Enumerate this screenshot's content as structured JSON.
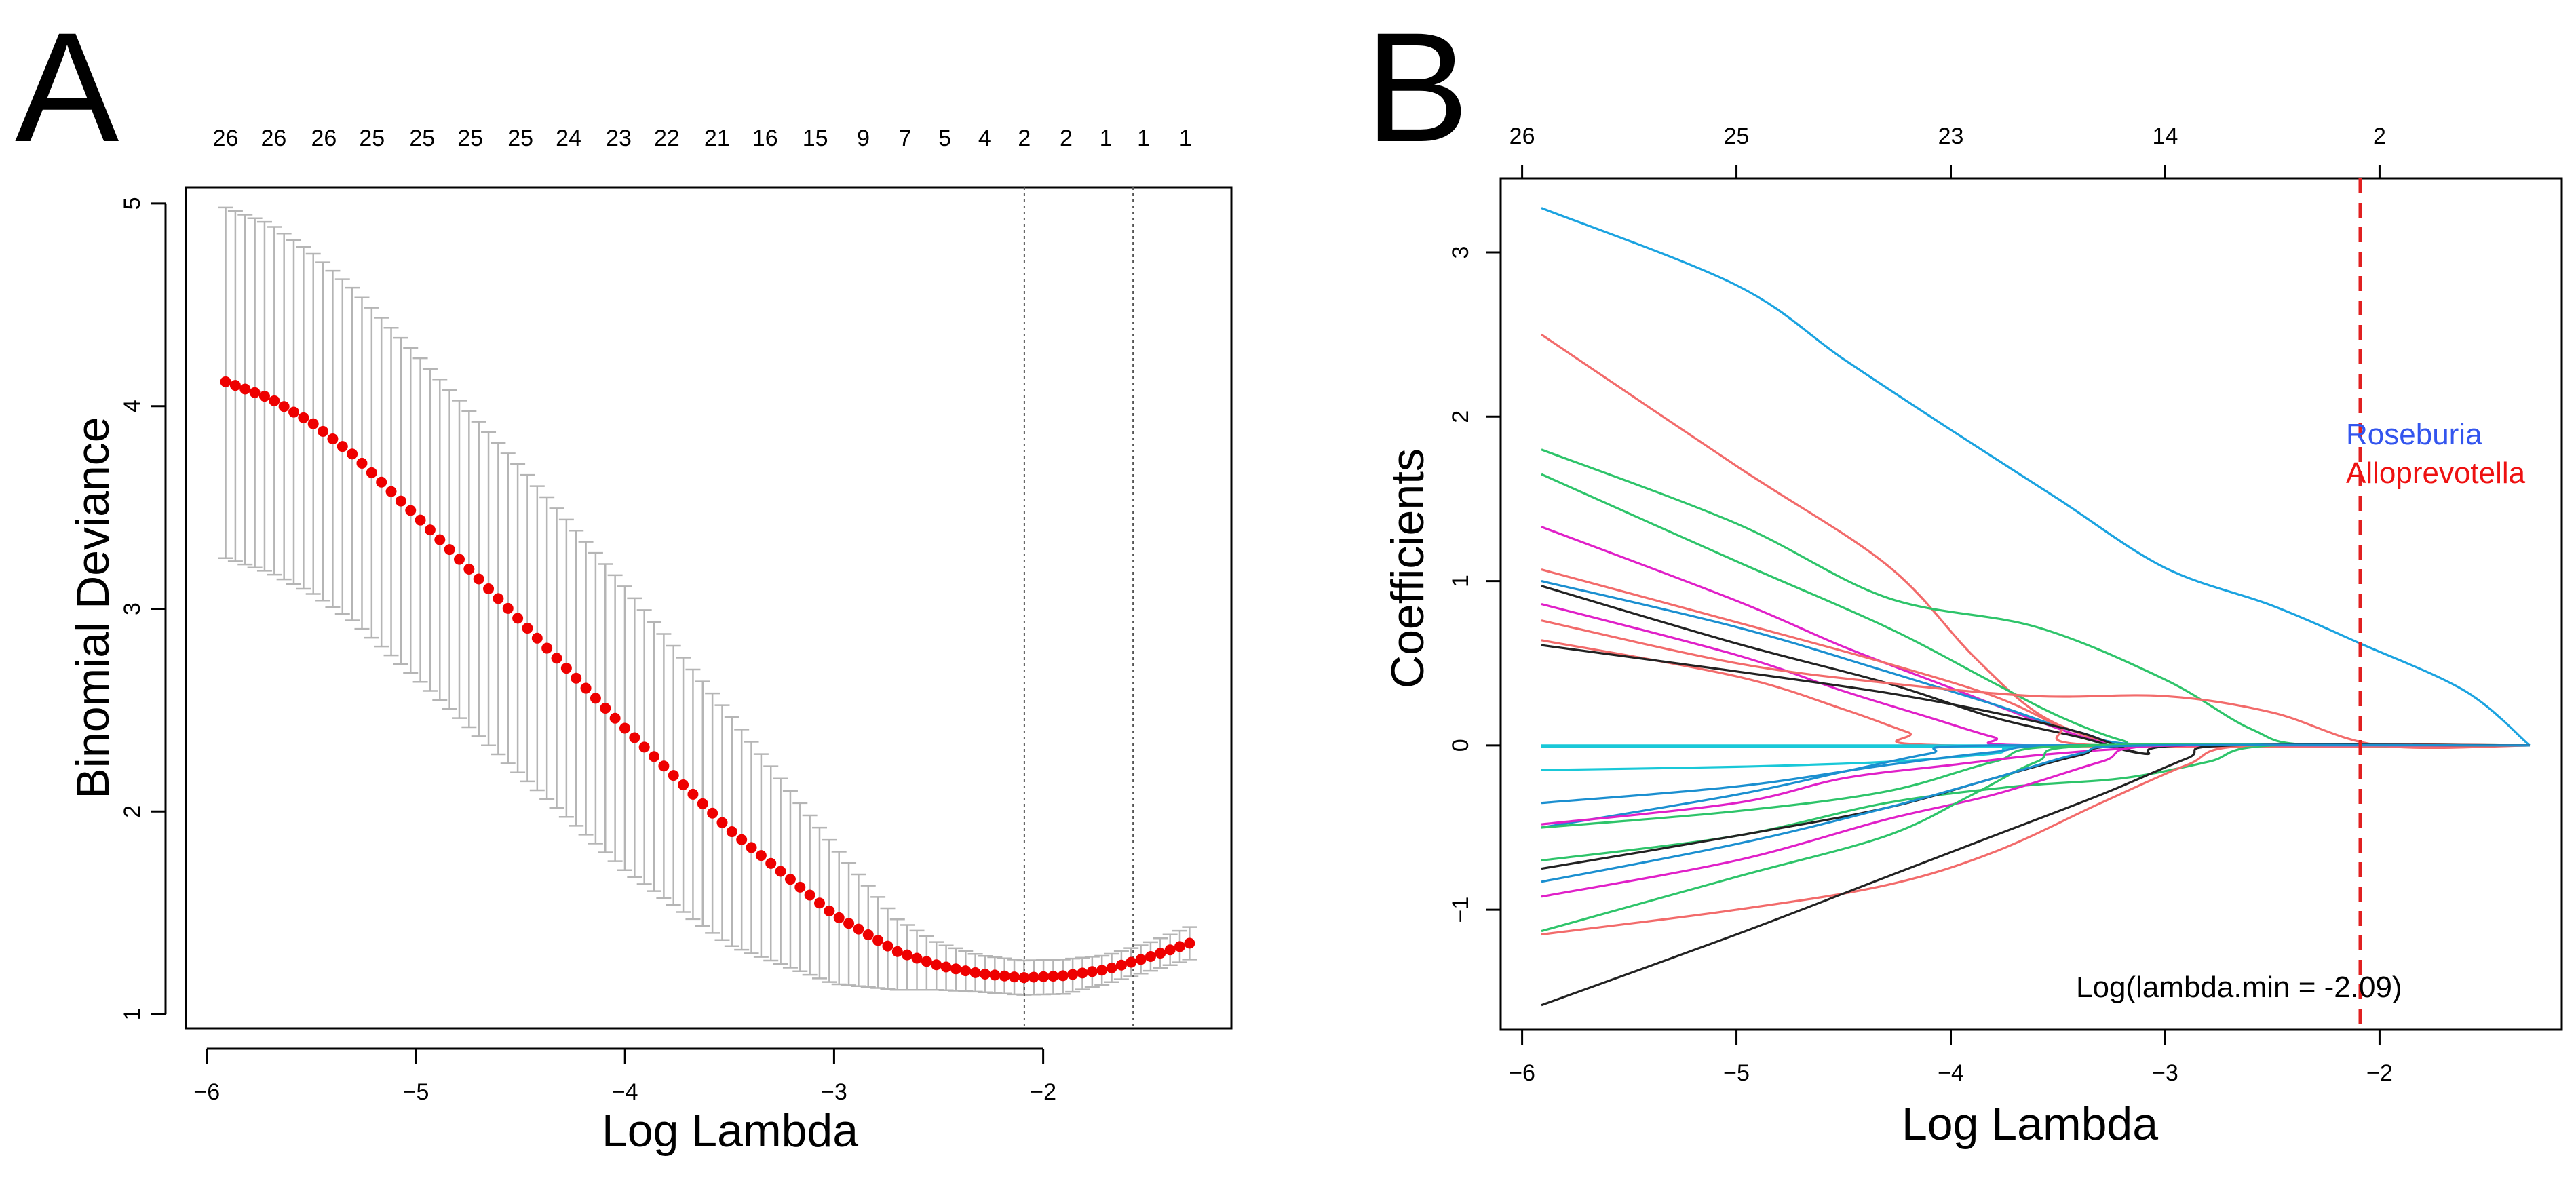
{
  "chart_data": [
    {
      "panel": "A",
      "type": "line",
      "plot_kind": "cross-validation deviance with error bars",
      "xlabel": "Log Lambda",
      "ylabel": "Binomial Deviance",
      "xlim": [
        -6.1,
        -1.1
      ],
      "ylim": [
        0.93,
        5.08
      ],
      "xticks": [
        -6,
        -5,
        -4,
        -3,
        -2
      ],
      "xtick_labels": [
        "−6",
        "−5",
        "−4",
        "−3",
        "−2"
      ],
      "yticks": [
        1,
        2,
        3,
        4,
        5
      ],
      "ytick_labels": [
        "1",
        "2",
        "3",
        "4",
        "5"
      ],
      "top_labels": [
        "26",
        "26",
        "26",
        "25",
        "25",
        "25",
        "25",
        "24",
        "23",
        "22",
        "21",
        "16",
        "15",
        "9",
        "7",
        "5",
        "4",
        "2",
        "2",
        "1",
        "1",
        "1"
      ],
      "top_label_x": [
        -5.91,
        -5.68,
        -5.44,
        -5.21,
        -4.97,
        -4.74,
        -4.5,
        -4.27,
        -4.03,
        -3.8,
        -3.56,
        -3.33,
        -3.09,
        -2.86,
        -2.66,
        -2.47,
        -2.28,
        -2.09,
        -1.89,
        -1.7,
        -1.52,
        -1.32
      ],
      "lambda_min": -2.09,
      "lambda_1se": -1.57,
      "curve": {
        "x_start": -5.91,
        "x_end": -1.3,
        "n_points": 100,
        "color": "#ee0000",
        "knots_x": [
          -5.91,
          -5.7,
          -5.5,
          -5.3,
          -5.0,
          -4.5,
          -4.0,
          -3.5,
          -3.0,
          -2.7,
          -2.5,
          -2.3,
          -2.1,
          -1.9,
          -1.7,
          -1.5,
          -1.3
        ],
        "knots_y": [
          4.12,
          4.04,
          3.92,
          3.76,
          3.46,
          2.94,
          2.41,
          1.91,
          1.49,
          1.31,
          1.24,
          1.2,
          1.18,
          1.19,
          1.22,
          1.28,
          1.35
        ],
        "upper_knots_y": [
          4.98,
          4.9,
          4.76,
          4.58,
          4.26,
          3.7,
          3.11,
          2.48,
          1.83,
          1.47,
          1.35,
          1.29,
          1.265,
          1.27,
          1.29,
          1.35,
          1.43
        ],
        "lower_knots_y": [
          3.25,
          3.18,
          3.08,
          2.94,
          2.66,
          2.18,
          1.71,
          1.34,
          1.15,
          1.12,
          1.12,
          1.11,
          1.095,
          1.1,
          1.15,
          1.21,
          1.27
        ]
      }
    },
    {
      "panel": "B",
      "type": "line",
      "plot_kind": "lasso coefficient paths",
      "xlabel": "Log Lambda",
      "ylabel": "Coefficients",
      "xlim": [
        -6.1,
        -1.15
      ],
      "ylim": [
        -1.73,
        3.45
      ],
      "xticks": [
        -6,
        -5,
        -4,
        -3,
        -2
      ],
      "xtick_labels": [
        "−6",
        "−5",
        "−4",
        "−3",
        "−2"
      ],
      "yticks": [
        -1,
        0,
        1,
        2,
        3
      ],
      "ytick_labels": [
        "−1",
        "0",
        "1",
        "2",
        "3"
      ],
      "top_labels": [
        "26",
        "25",
        "23",
        "14",
        "2"
      ],
      "top_label_x": [
        -6,
        -5,
        -4,
        -3,
        -2
      ],
      "lambda_min_line": -2.09,
      "annotation": "Log(lambda.min = -2.09)",
      "legend": [
        {
          "label": "Roseburia",
          "color": "#3355ee"
        },
        {
          "label": "Alloprevotella",
          "color": "#ee1111"
        }
      ],
      "series": [
        {
          "color": "#1ba3e0",
          "x": [
            -5.91,
            -5.0,
            -4.5,
            -4.0,
            -3.5,
            -3.0,
            -2.5,
            -2.09,
            -1.6,
            -1.3
          ],
          "y": [
            3.27,
            2.8,
            2.35,
            1.92,
            1.5,
            1.08,
            0.85,
            0.62,
            0.33,
            0.0
          ]
        },
        {
          "color": "#f26b6b",
          "x": [
            -5.91,
            -5.0,
            -4.3,
            -3.9,
            -3.6,
            -3.3,
            -3.1
          ],
          "y": [
            2.5,
            1.7,
            1.1,
            0.55,
            0.2,
            0.03,
            0.0
          ]
        },
        {
          "color": "#2ec46a",
          "x": [
            -5.91,
            -5.0,
            -4.3,
            -3.6,
            -3.0,
            -2.6,
            -2.3
          ],
          "y": [
            1.8,
            1.35,
            0.9,
            0.72,
            0.4,
            0.1,
            0.0
          ]
        },
        {
          "color": "#2ec46a",
          "x": [
            -5.91,
            -5.0,
            -4.3,
            -3.8,
            -3.5,
            -3.2,
            -3.0
          ],
          "y": [
            1.65,
            1.12,
            0.72,
            0.38,
            0.18,
            0.03,
            0.0
          ]
        },
        {
          "color": "#e020c8",
          "x": [
            -5.91,
            -5.0,
            -4.5,
            -4.0,
            -3.6,
            -3.3,
            -3.1
          ],
          "y": [
            1.33,
            0.88,
            0.6,
            0.35,
            0.15,
            0.02,
            0.0
          ]
        },
        {
          "color": "#1b8fd0",
          "x": [
            -5.91,
            -5.0,
            -4.3,
            -3.8,
            -3.4,
            -3.0
          ],
          "y": [
            1.0,
            0.72,
            0.45,
            0.25,
            0.08,
            0.0
          ]
        },
        {
          "color": "#222222",
          "x": [
            -5.91,
            -5.0,
            -4.3,
            -3.8,
            -3.4,
            -3.1,
            -2.9
          ],
          "y": [
            0.97,
            0.62,
            0.38,
            0.17,
            0.05,
            -0.05,
            0.0
          ]
        },
        {
          "color": "#f26b6b",
          "x": [
            -5.91,
            -5.0,
            -4.3,
            -3.8,
            -3.5,
            -3.3
          ],
          "y": [
            1.07,
            0.75,
            0.5,
            0.3,
            0.12,
            0.0
          ]
        },
        {
          "color": "#e020c8",
          "x": [
            -5.91,
            -5.0,
            -4.5,
            -4.1,
            -3.8,
            -3.6
          ],
          "y": [
            0.86,
            0.55,
            0.33,
            0.17,
            0.05,
            0.0
          ]
        },
        {
          "color": "#f26b6b",
          "x": [
            -5.91,
            -5.0,
            -4.3,
            -3.6,
            -3.0,
            -2.5,
            -2.0
          ],
          "y": [
            0.76,
            0.5,
            0.38,
            0.3,
            0.3,
            0.2,
            0.0
          ]
        },
        {
          "color": "#f26b6b",
          "x": [
            -5.91,
            -5.0,
            -4.5,
            -4.2,
            -4.0
          ],
          "y": [
            0.64,
            0.42,
            0.22,
            0.08,
            0.0
          ]
        },
        {
          "color": "#222222",
          "x": [
            -5.91,
            -5.0,
            -4.3,
            -3.8,
            -3.4,
            -3.1,
            -2.9
          ],
          "y": [
            0.61,
            0.45,
            0.32,
            0.2,
            0.08,
            -0.05,
            0.0
          ]
        },
        {
          "color": "#19c8d8",
          "x": [
            -5.91,
            -4.5,
            -3.5
          ],
          "y": [
            0.0,
            0.0,
            0.0
          ]
        },
        {
          "color": "#19c8d8",
          "x": [
            -5.91,
            -5.0,
            -4.3,
            -3.8,
            -3.5
          ],
          "y": [
            -0.01,
            -0.01,
            -0.01,
            -0.01,
            0.0
          ]
        },
        {
          "color": "#19c8d8",
          "x": [
            -5.91,
            -5.0,
            -4.3,
            -3.8,
            -3.5
          ],
          "y": [
            -0.15,
            -0.13,
            -0.1,
            -0.05,
            0.0
          ]
        },
        {
          "color": "#1b8fd0",
          "x": [
            -5.91,
            -5.0,
            -4.3,
            -3.8,
            -3.4
          ],
          "y": [
            -0.35,
            -0.25,
            -0.12,
            -0.04,
            0.0
          ]
        },
        {
          "color": "#1b8fd0",
          "x": [
            -5.91,
            -5.0,
            -4.5,
            -4.1,
            -3.8
          ],
          "y": [
            -0.5,
            -0.3,
            -0.16,
            -0.05,
            0.0
          ]
        },
        {
          "color": "#2ec46a",
          "x": [
            -5.91,
            -5.0,
            -4.3,
            -3.8,
            -3.4
          ],
          "y": [
            -0.5,
            -0.4,
            -0.28,
            -0.1,
            0.0
          ]
        },
        {
          "color": "#e020c8",
          "x": [
            -5.91,
            -5.0,
            -4.5,
            -4.0,
            -3.6,
            -3.2,
            -2.9
          ],
          "y": [
            -0.48,
            -0.35,
            -0.2,
            -0.12,
            -0.06,
            -0.02,
            0.0
          ]
        },
        {
          "color": "#2ec46a",
          "x": [
            -5.91,
            -5.0,
            -4.3,
            -3.7,
            -3.2,
            -2.8,
            -2.5
          ],
          "y": [
            -0.7,
            -0.55,
            -0.35,
            -0.25,
            -0.2,
            -0.1,
            0.0
          ]
        },
        {
          "color": "#222222",
          "x": [
            -5.91,
            -5.0,
            -4.3,
            -3.8,
            -3.4,
            -3.1
          ],
          "y": [
            -0.75,
            -0.55,
            -0.38,
            -0.2,
            -0.06,
            0.0
          ]
        },
        {
          "color": "#e020c8",
          "x": [
            -5.91,
            -5.0,
            -4.3,
            -3.8,
            -3.3,
            -3.0
          ],
          "y": [
            -0.92,
            -0.7,
            -0.45,
            -0.3,
            -0.1,
            0.0
          ]
        },
        {
          "color": "#2ec46a",
          "x": [
            -5.91,
            -5.0,
            -4.3,
            -3.9,
            -3.6,
            -3.3
          ],
          "y": [
            -1.13,
            -0.8,
            -0.55,
            -0.3,
            -0.1,
            0.0
          ]
        },
        {
          "color": "#f26b6b",
          "x": [
            -5.91,
            -5.0,
            -4.3,
            -3.8,
            -3.3,
            -2.9,
            -2.6
          ],
          "y": [
            -1.15,
            -1.0,
            -0.85,
            -0.65,
            -0.35,
            -0.12,
            0.0
          ]
        },
        {
          "color": "#222222",
          "x": [
            -5.91,
            -5.0,
            -4.3,
            -3.8,
            -3.3,
            -2.9,
            -2.7
          ],
          "y": [
            -1.58,
            -1.15,
            -0.8,
            -0.55,
            -0.3,
            -0.08,
            0.0
          ]
        },
        {
          "color": "#1b8fd0",
          "x": [
            -5.91,
            -5.0,
            -4.3,
            -3.8,
            -3.4,
            -3.1
          ],
          "y": [
            -0.83,
            -0.6,
            -0.38,
            -0.2,
            -0.05,
            0.0
          ]
        }
      ]
    }
  ]
}
